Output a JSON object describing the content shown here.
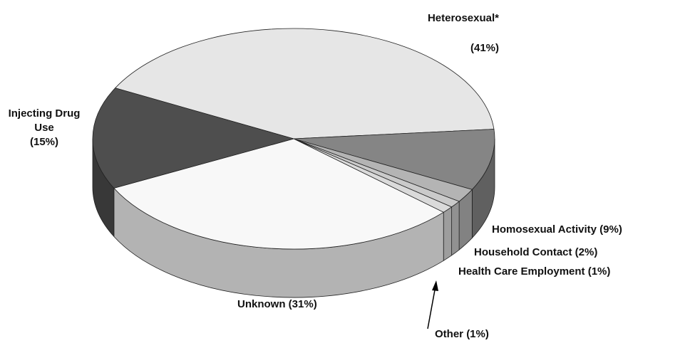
{
  "chart_data": {
    "type": "pie",
    "categories": [
      "Heterosexual*",
      "Homosexual Activity",
      "Household Contact",
      "Health Care Employment",
      "Other",
      "Unknown",
      "Injecting Drug Use"
    ],
    "values": [
      41,
      9,
      2,
      1,
      1,
      31,
      15
    ],
    "value_labels": [
      "(41%)",
      "(9%)",
      "(2%)",
      "(1%)",
      "(1%)",
      "(31%)",
      "(15%)"
    ],
    "colors": [
      "#e6e6e6",
      "#858585",
      "#b4b4b4",
      "#cacaca",
      "#dadada",
      "#f8f8f8",
      "#4e4e4e"
    ]
  }
}
